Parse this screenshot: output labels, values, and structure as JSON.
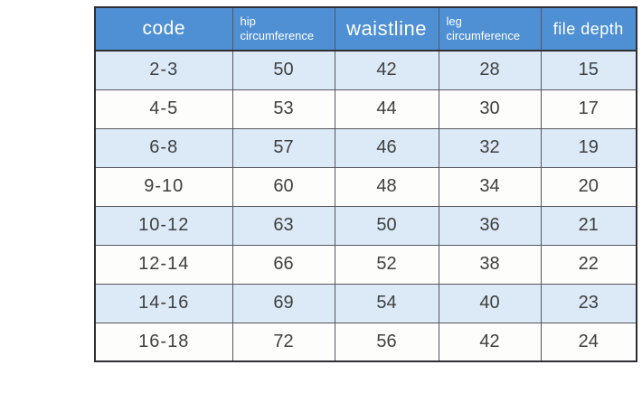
{
  "chart_data": {
    "type": "table",
    "title": "",
    "columns": [
      "code",
      "hip circumference",
      "waistline",
      "leg circumference",
      "file depth"
    ],
    "rows": [
      [
        "2-3",
        50,
        42,
        28,
        15
      ],
      [
        "4-5",
        53,
        44,
        30,
        17
      ],
      [
        "6-8",
        57,
        46,
        32,
        19
      ],
      [
        "9-10",
        60,
        48,
        34,
        20
      ],
      [
        "10-12",
        63,
        50,
        36,
        21
      ],
      [
        "12-14",
        66,
        52,
        38,
        22
      ],
      [
        "14-16",
        69,
        54,
        40,
        23
      ],
      [
        "16-18",
        72,
        56,
        42,
        24
      ]
    ]
  },
  "table_ui": {
    "header_display": [
      "code",
      "hip\ncircumference",
      "waistline",
      "leg\ncircumference",
      "file depth"
    ]
  },
  "colors": {
    "header_bg": "#4f90d5",
    "header_text": "#ffffff",
    "row_alt_bg": "#dceaf8",
    "row_bg": "#fdfdfc",
    "border_dark": "#2e2e33",
    "border_grid": "#55555e",
    "cell_text": "#3f3f3f"
  }
}
